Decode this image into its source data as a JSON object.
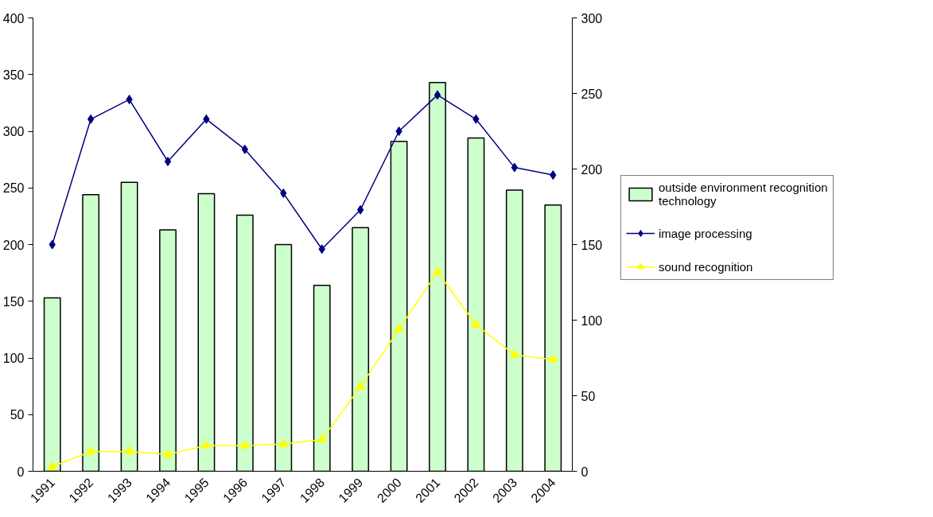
{
  "chart_data": {
    "type": "bar",
    "categories": [
      "1991",
      "1992",
      "1993",
      "1994",
      "1995",
      "1996",
      "1997",
      "1998",
      "1999",
      "2000",
      "2001",
      "2002",
      "2003",
      "2004"
    ],
    "series": [
      {
        "name": "outside environment recognition technology",
        "color": "#ccffcc",
        "values": [
          153,
          244,
          255,
          213,
          245,
          226,
          200,
          164,
          215,
          291,
          343,
          294,
          248,
          235
        ]
      },
      {
        "name": "image processing",
        "type": "line",
        "axis": "y2",
        "marker": "diamond",
        "color": "#000080",
        "values": [
          150,
          233,
          246,
          205,
          233,
          213,
          184,
          147,
          173,
          225,
          249,
          233,
          201,
          196
        ]
      },
      {
        "name": "sound recognition",
        "type": "line",
        "axis": "y2",
        "marker": "triangle",
        "color": "#ffff00",
        "values": [
          3,
          13,
          13,
          11,
          17,
          17,
          18,
          21,
          56,
          94,
          132,
          97,
          77,
          74
        ]
      }
    ],
    "ylim": [
      0,
      400
    ],
    "yticks": [
      0,
      50,
      100,
      150,
      200,
      250,
      300,
      350,
      400
    ],
    "y2lim": [
      0,
      300
    ],
    "y2ticks": [
      0,
      50,
      100,
      150,
      200,
      250,
      300
    ],
    "grid": false,
    "legend": "right"
  }
}
